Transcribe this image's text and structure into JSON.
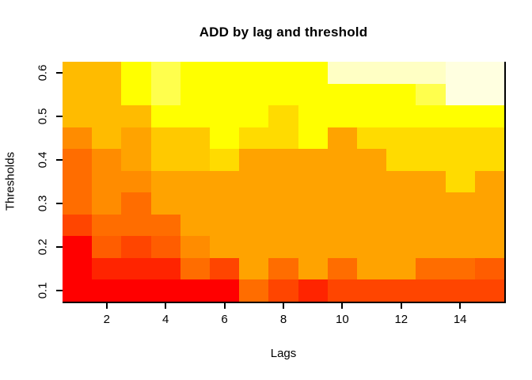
{
  "chart_data": {
    "type": "heatmap",
    "title": "ADD by lag and threshold",
    "xlabel": "Lags",
    "ylabel": "Thresholds",
    "x_categories": [
      1,
      2,
      3,
      4,
      5,
      6,
      7,
      8,
      9,
      10,
      11,
      12,
      13,
      14,
      15
    ],
    "y_categories_top_to_bottom": [
      0.6,
      0.55,
      0.5,
      0.45,
      0.4,
      0.35,
      0.3,
      0.25,
      0.2,
      0.15,
      0.1
    ],
    "x_range": [
      0.5,
      15.5
    ],
    "y_range": [
      0.075,
      0.625
    ],
    "x_tick_values": [
      2,
      4,
      6,
      8,
      10,
      12,
      14
    ],
    "x_tick_labels": [
      "2",
      "4",
      "6",
      "8",
      "10",
      "12",
      "14"
    ],
    "y_tick_values": [
      0.1,
      0.2,
      0.3,
      0.4,
      0.5,
      0.6
    ],
    "y_tick_labels": [
      "0.1",
      "0.2",
      "0.3",
      "0.4",
      "0.5",
      "0.6"
    ],
    "legend": "none",
    "grid_lines": false,
    "background": "#FFFFFF",
    "axis_color": "#000000",
    "text_color": "#000000",
    "palette_note": "heat.colors-style ramp: index 0 = red (high ADD density color at low thresholds/low lags region) up to index 13 = near-white",
    "palette": [
      "#FF0000",
      "#FF2400",
      "#FF4500",
      "#FF5D00",
      "#FF6D00",
      "#FF8C00",
      "#FFA300",
      "#FFBB00",
      "#FFC900",
      "#FFDB00",
      "#FFFF00",
      "#FFFF4D",
      "#FFFFC4",
      "#FFFFE0"
    ],
    "grid_rows_top_to_bottom": [
      [
        7,
        7,
        10,
        11,
        10,
        10,
        10,
        10,
        10,
        12,
        12,
        12,
        12,
        13,
        13
      ],
      [
        7,
        7,
        10,
        11,
        10,
        10,
        10,
        10,
        10,
        10,
        10,
        10,
        11,
        13,
        13
      ],
      [
        7,
        7,
        7,
        10,
        10,
        10,
        10,
        9,
        10,
        10,
        10,
        10,
        10,
        10,
        10
      ],
      [
        5,
        7,
        6,
        8,
        8,
        10,
        9,
        9,
        10,
        6,
        9,
        9,
        9,
        9,
        9
      ],
      [
        4,
        5,
        6,
        8,
        8,
        9,
        6,
        6,
        6,
        6,
        6,
        9,
        9,
        9,
        9
      ],
      [
        4,
        5,
        5,
        6,
        6,
        6,
        6,
        6,
        6,
        6,
        6,
        6,
        6,
        9,
        6
      ],
      [
        4,
        5,
        4,
        6,
        6,
        6,
        6,
        6,
        6,
        6,
        6,
        6,
        6,
        6,
        6
      ],
      [
        2,
        4,
        4,
        4,
        6,
        6,
        6,
        6,
        6,
        6,
        6,
        6,
        6,
        6,
        6
      ],
      [
        0,
        3,
        2,
        3,
        5,
        6,
        6,
        6,
        6,
        6,
        6,
        6,
        6,
        6,
        6
      ],
      [
        0,
        1,
        1,
        1,
        4,
        2,
        6,
        4,
        6,
        4,
        6,
        6,
        4,
        4,
        3
      ],
      [
        0,
        0,
        0,
        0,
        0,
        0,
        4,
        2,
        1,
        2,
        2,
        2,
        2,
        2,
        2
      ]
    ]
  }
}
